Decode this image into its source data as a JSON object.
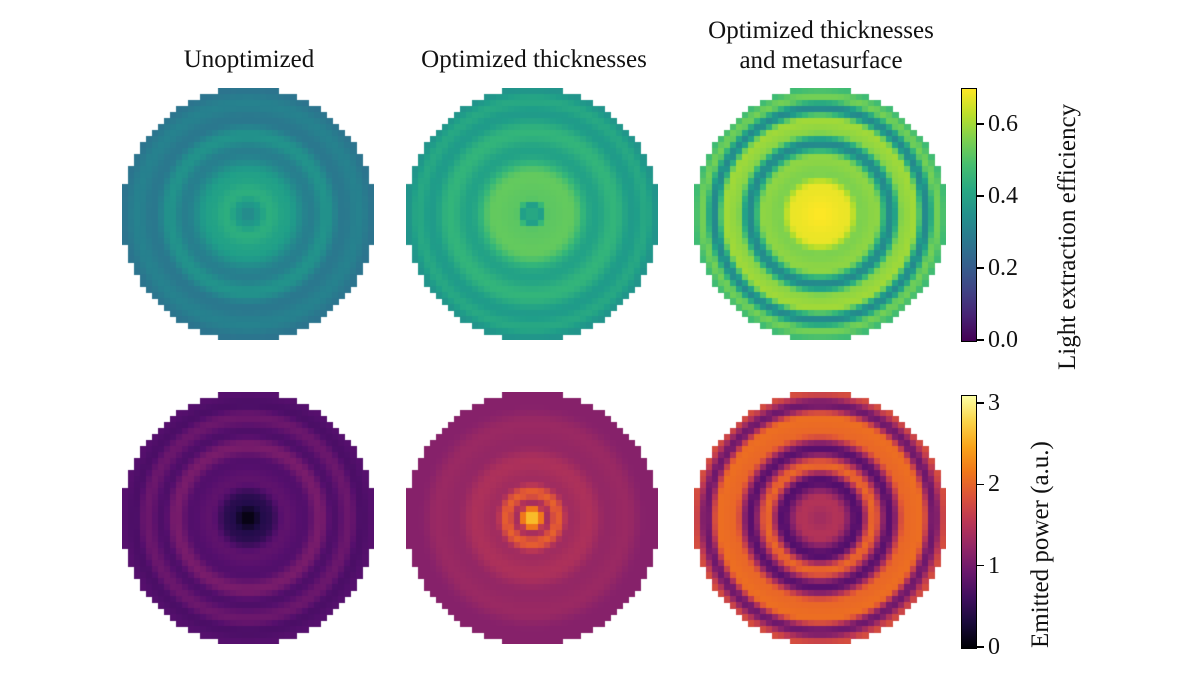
{
  "chart_data": {
    "type": "heatmap",
    "column_titles": [
      "Unoptimized",
      "Optimized thicknesses",
      "Optimized thicknesses\nand metasurface"
    ],
    "rows": [
      {
        "quantity": "Light extraction efficiency",
        "colormap": "viridis",
        "range": [
          0.0,
          0.7
        ],
        "ticks": [
          "0.0",
          "0.2",
          "0.4",
          "0.6"
        ],
        "tick_values": [
          0.0,
          0.2,
          0.4,
          0.6
        ],
        "radial_profiles": [
          [
            [
              0,
              0.31
            ],
            [
              0.07,
              0.37
            ],
            [
              0.17,
              0.44
            ],
            [
              0.3,
              0.4
            ],
            [
              0.5,
              0.3
            ],
            [
              0.62,
              0.36
            ],
            [
              0.75,
              0.28
            ],
            [
              0.88,
              0.31
            ],
            [
              1.0,
              0.27
            ]
          ],
          [
            [
              0,
              0.47
            ],
            [
              0.06,
              0.38
            ],
            [
              0.13,
              0.52
            ],
            [
              0.3,
              0.53
            ],
            [
              0.5,
              0.4
            ],
            [
              0.65,
              0.46
            ],
            [
              0.8,
              0.38
            ],
            [
              0.9,
              0.42
            ],
            [
              1.0,
              0.36
            ]
          ],
          [
            [
              0,
              0.7
            ],
            [
              0.22,
              0.68
            ],
            [
              0.32,
              0.56
            ],
            [
              0.45,
              0.58
            ],
            [
              0.56,
              0.33
            ],
            [
              0.66,
              0.58
            ],
            [
              0.75,
              0.6
            ],
            [
              0.84,
              0.33
            ],
            [
              0.93,
              0.55
            ],
            [
              1.0,
              0.48
            ]
          ]
        ]
      },
      {
        "quantity": "Emitted power (a.u.)",
        "colormap": "inferno",
        "range": [
          0,
          3.1
        ],
        "ticks": [
          "0",
          "1",
          "2",
          "3"
        ],
        "tick_values": [
          0,
          1,
          2,
          3
        ],
        "radial_profiles": [
          [
            [
              0,
              0.05
            ],
            [
              0.15,
              0.45
            ],
            [
              0.3,
              0.85
            ],
            [
              0.45,
              0.75
            ],
            [
              0.57,
              1.05
            ],
            [
              0.68,
              0.72
            ],
            [
              0.8,
              0.95
            ],
            [
              0.9,
              0.7
            ],
            [
              1.0,
              0.78
            ]
          ],
          [
            [
              0,
              3.1
            ],
            [
              0.06,
              2.3
            ],
            [
              0.12,
              1.4
            ],
            [
              0.2,
              2.0
            ],
            [
              0.3,
              1.35
            ],
            [
              0.45,
              1.45
            ],
            [
              0.6,
              1.25
            ],
            [
              0.75,
              1.3
            ],
            [
              0.9,
              1.15
            ],
            [
              1.0,
              1.15
            ]
          ],
          [
            [
              0,
              1.35
            ],
            [
              0.15,
              1.5
            ],
            [
              0.3,
              0.75
            ],
            [
              0.42,
              2.05
            ],
            [
              0.55,
              0.8
            ],
            [
              0.68,
              2.05
            ],
            [
              0.8,
              2.1
            ],
            [
              0.9,
              0.95
            ],
            [
              1.0,
              1.8
            ]
          ]
        ]
      }
    ]
  }
}
